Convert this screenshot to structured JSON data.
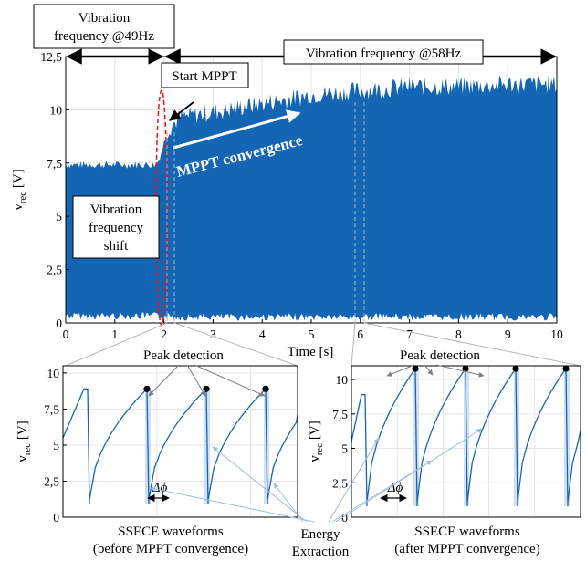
{
  "chart_data": [
    {
      "type": "area",
      "xlabel": "Time [s]",
      "ylabel": "v",
      "ylabel_sub": "rec",
      "ylabel_unit": " [V]",
      "xlim": [
        0,
        10
      ],
      "ylim": [
        0,
        12.5
      ],
      "x_ticks": [
        "0",
        "1",
        "2",
        "3",
        "4",
        "5",
        "6",
        "7",
        "8",
        "9",
        "10"
      ],
      "y_ticks": [
        "0",
        "2,5",
        "5",
        "7,5",
        "10",
        "12,5"
      ],
      "grid": true,
      "envelope": {
        "x": [
          0,
          1.85,
          1.95,
          2.05,
          2.3,
          2.5,
          3,
          3.5,
          4,
          4.5,
          5,
          5.5,
          6,
          6.5,
          7,
          8,
          9,
          10
        ],
        "upper": [
          7.4,
          7.4,
          8.0,
          8.8,
          9.4,
          9.5,
          9.7,
          9.9,
          10.1,
          10.3,
          10.5,
          10.6,
          10.7,
          10.8,
          10.9,
          10.9,
          11.0,
          11.0
        ],
        "lower": [
          0.5,
          0.5,
          0.5,
          0.5,
          0.45,
          0.45,
          0.45,
          0.45,
          0.45,
          0.45,
          0.45,
          0.45,
          0.45,
          0.45,
          0.45,
          0.45,
          0.45,
          0.45
        ]
      },
      "series_color": "#1466b5",
      "annotations": {
        "freq1": [
          "Vibration",
          "frequency @49Hz"
        ],
        "freq2": "Vibration frequency @58Hz",
        "start_mppt": "Start MPPT",
        "convergence": "MPPT convergence",
        "shift": [
          "Vibration",
          "frequency",
          "shift"
        ],
        "peak_detection": "Peak detection",
        "energy_extraction": [
          "Energy",
          "Extraction"
        ]
      },
      "colors": {
        "shift": "#e8141b",
        "peak": "#808080",
        "energy": "#9dbee3"
      }
    },
    {
      "type": "line",
      "caption": [
        "SSECE waveforms",
        "(before MPPT convergence)"
      ],
      "ylabel": "v",
      "ylabel_sub": "rec",
      "ylabel_unit": " [V]",
      "ylim": [
        0,
        10.5
      ],
      "y_ticks": [
        "0",
        "2,5",
        "5",
        "7,5",
        "10"
      ],
      "delta_label": "Δϕ",
      "peak_values": [
        8.9,
        8.9,
        8.9
      ]
    },
    {
      "type": "line",
      "caption": [
        "SSECE waveforms",
        "(after MPPT convergence)"
      ],
      "ylabel": "v",
      "ylabel_sub": "rec",
      "ylabel_unit": " [V]",
      "ylim": [
        0,
        11
      ],
      "y_ticks": [
        "0",
        "2,5",
        "5",
        "7,5",
        "10"
      ],
      "delta_label": "Δϕ",
      "peak_values": [
        10.8,
        10.8,
        10.8
      ]
    }
  ]
}
